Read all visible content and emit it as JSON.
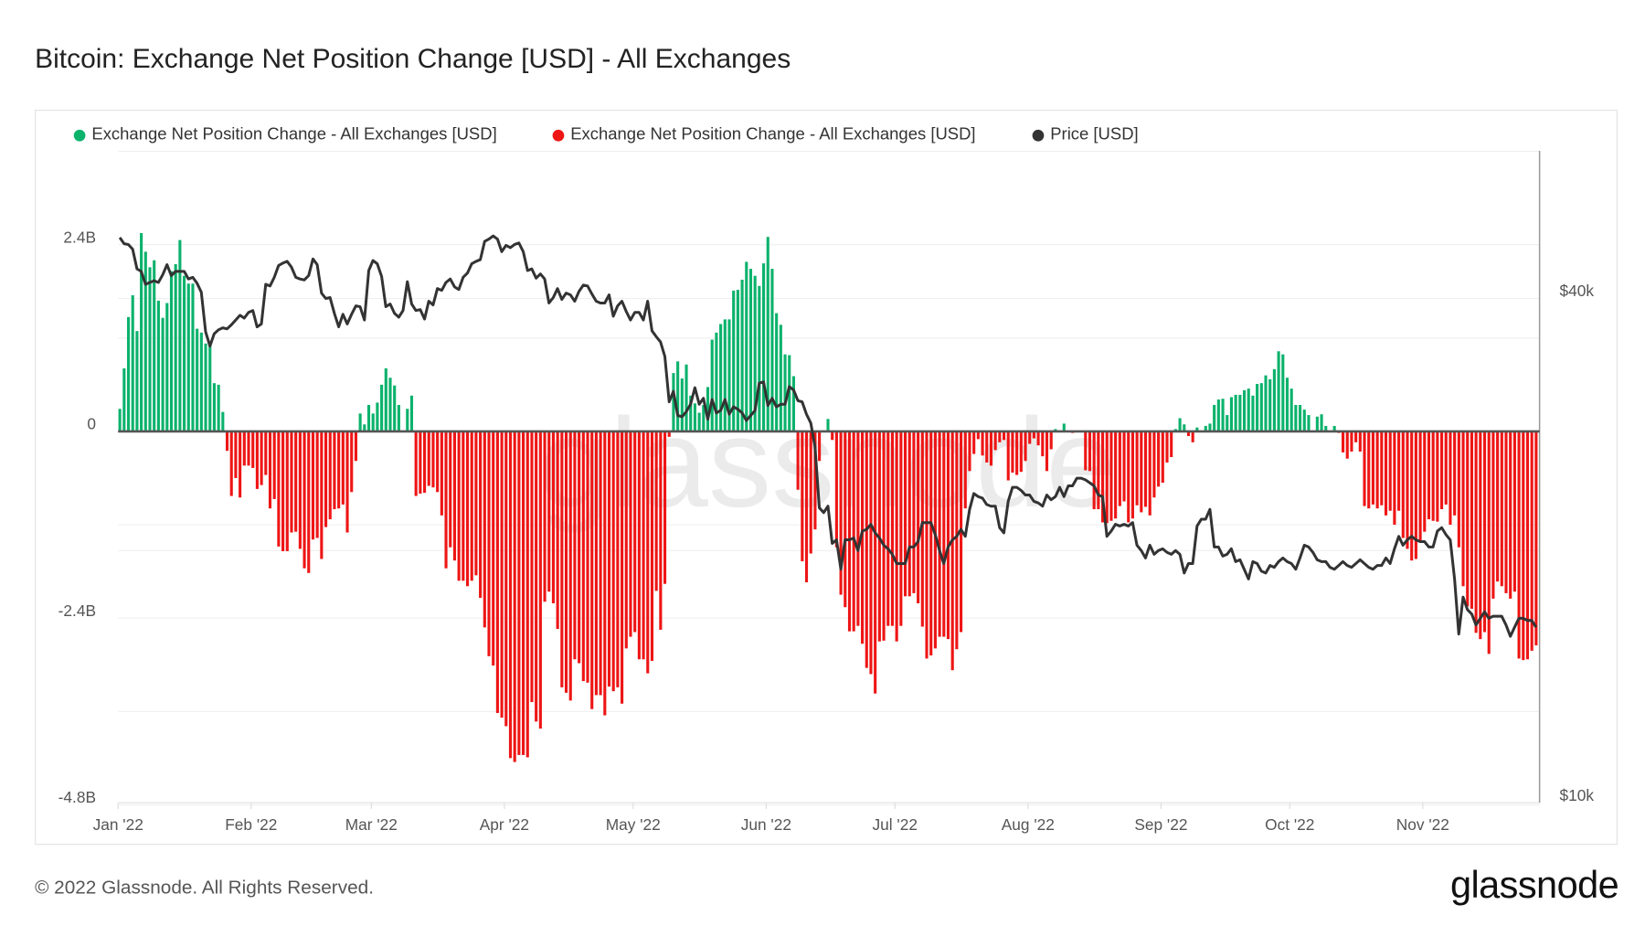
{
  "title": "Bitcoin: Exchange Net Position Change [USD] - All Exchanges",
  "footer": {
    "copyright": "© 2022 Glassnode. All Rights Reserved.",
    "logo": "glassnode",
    "watermark": "glassnode"
  },
  "colors": {
    "positive": "#0bb26c",
    "negative": "#ee1515",
    "price": "#333333",
    "zero_line": "#555555",
    "grid": "#efefef"
  },
  "legend": [
    {
      "label": "Exchange Net Position Change - All Exchanges [USD]",
      "color": "#0bb26c"
    },
    {
      "label": "Exchange Net Position Change - All Exchanges [USD]",
      "color": "#ee1515"
    },
    {
      "label": "Price [USD]",
      "color": "#333333"
    }
  ],
  "chart_data": {
    "type": "bar+line",
    "legend_position": "top-left",
    "grid": true,
    "left_axis": {
      "unit": "USD",
      "range": [
        -4.8,
        3.6
      ],
      "ticks": [
        {
          "value": 2.4,
          "label": "2.4B"
        },
        {
          "value": 0,
          "label": "0"
        },
        {
          "value": -2.4,
          "label": "-2.4B"
        },
        {
          "value": -4.8,
          "label": "-4.8B"
        }
      ],
      "gridlines": [
        3.6,
        2.4,
        1.2,
        0,
        -1.2,
        -2.4,
        -3.6,
        -4.8
      ]
    },
    "right_axis": {
      "unit": "USD",
      "scale": "log",
      "range": [
        10000,
        50000
      ],
      "ticks": [
        {
          "value": 40000,
          "label": "$40k"
        },
        {
          "value": 10000,
          "label": "$10k"
        }
      ],
      "gridlines": [
        40000,
        20000
      ]
    },
    "x_axis": {
      "ticks": [
        "Jan '22",
        "Feb '22",
        "Mar '22",
        "Apr '22",
        "May '22",
        "Jun '22",
        "Jul '22",
        "Aug '22",
        "Sep '22",
        "Oct '22",
        "Nov '22"
      ]
    },
    "net_position_unit": "billion USD (daily)",
    "price_unit": "thousand USD (daily)",
    "months": [
      {
        "label": "Jan '22",
        "net": [
          0.29,
          0.81,
          1.47,
          1.75,
          1.29,
          2.55,
          2.31,
          2.11,
          2.2,
          1.68,
          1.46,
          1.65,
          2.06,
          2.15,
          2.46,
          2.0,
          1.9,
          1.9,
          1.32,
          1.27,
          1.13,
          1.13,
          0.62,
          0.6,
          0.25,
          -0.25,
          -0.83,
          -0.6,
          -0.85,
          -0.44,
          -0.44
        ],
        "price": [
          47.3,
          46.5,
          46.4,
          45.8,
          43.4,
          43.1,
          41.6,
          41.8,
          42.0,
          41.8,
          42.7,
          43.9,
          42.6,
          43.1,
          43.1,
          43.1,
          42.2,
          42.4,
          41.7,
          40.7,
          36.5,
          35.1,
          36.3,
          36.7,
          36.9,
          36.8,
          37.2,
          37.7,
          38.2,
          37.9,
          38.5
        ]
      },
      {
        "label": "Feb '22",
        "net": [
          -0.47,
          -0.74,
          -0.69,
          -0.56,
          -0.99,
          -0.87,
          -1.48,
          -1.54,
          -1.54,
          -1.3,
          -1.29,
          -1.51,
          -1.76,
          -1.82,
          -1.39,
          -1.37,
          -1.64,
          -1.23,
          -1.13,
          -1.0,
          -0.99,
          -0.94,
          -1.3,
          -0.78,
          -0.38,
          0.23,
          0.09,
          0.34
        ],
        "price": [
          38.7,
          37.0,
          37.3,
          41.6,
          41.4,
          42.4,
          43.8,
          44.1,
          44.3,
          43.6,
          42.4,
          42.2,
          42.1,
          42.6,
          44.6,
          43.9,
          40.6,
          40.0,
          40.1,
          38.4,
          37.0,
          38.3,
          37.3,
          38.3,
          39.2,
          39.1,
          37.7,
          43.2
        ]
      },
      {
        "label": "Mar '22",
        "net": [
          0.23,
          0.37,
          0.6,
          0.81,
          0.69,
          0.59,
          0.34,
          0,
          0.29,
          0.46,
          -0.83,
          -0.8,
          -0.79,
          -0.7,
          -0.72,
          -0.78,
          -1.08,
          -1.76,
          -1.49,
          -1.66,
          -1.92,
          -1.92,
          -1.99,
          -1.92,
          -1.85,
          -2.14,
          -2.52,
          -2.89,
          -3.01,
          -3.62,
          -3.68
        ],
        "price": [
          44.4,
          44.0,
          42.5,
          39.1,
          39.4,
          38.4,
          38.0,
          38.7,
          41.9,
          39.4,
          38.7,
          38.8,
          37.8,
          39.7,
          39.3,
          41.1,
          40.9,
          41.8,
          42.2,
          41.3,
          41.0,
          42.4,
          42.9,
          44.0,
          44.3,
          44.5,
          46.8,
          47.1,
          47.5,
          47.1,
          45.5
        ]
      },
      {
        "label": "Apr '22",
        "net": [
          -3.79,
          -4.2,
          -4.25,
          -4.16,
          -4.16,
          -4.19,
          -3.48,
          -3.73,
          -3.82,
          -2.19,
          -2.06,
          -2.21,
          -2.54,
          -3.29,
          -3.36,
          -3.46,
          -2.93,
          -2.98,
          -3.21,
          -3.23,
          -3.57,
          -3.39,
          -3.39,
          -3.65,
          -3.28,
          -3.34,
          -3.29,
          -3.5,
          -2.79,
          -2.64
        ],
        "price": [
          46.3,
          46.0,
          46.4,
          46.6,
          45.5,
          43.2,
          43.4,
          42.3,
          42.8,
          42.2,
          39.5,
          40.1,
          41.1,
          39.9,
          40.6,
          40.4,
          39.7,
          40.8,
          41.5,
          41.4,
          40.5,
          39.7,
          39.5,
          39.5,
          40.4,
          38.1,
          39.2,
          39.7,
          38.6,
          37.7
        ]
      },
      {
        "label": "May '22",
        "net": [
          -2.58,
          -2.93,
          -2.93,
          -3.11,
          -2.95,
          -2.05,
          -2.55,
          -1.96,
          -0.07,
          0.75,
          0.9,
          0.68,
          0.86,
          0.46,
          0.36,
          0.24,
          0.34,
          0.57,
          1.18,
          1.27,
          1.38,
          1.44,
          1.44,
          1.81,
          1.82,
          1.95,
          2.18,
          2.09,
          2.0,
          1.87,
          2.16
        ],
        "price": [
          38.5,
          38.5,
          37.7,
          39.7,
          36.6,
          36.0,
          35.5,
          34.1,
          30.1,
          31.0,
          29.0,
          28.9,
          29.3,
          29.9,
          31.3,
          29.9,
          30.4,
          28.7,
          30.3,
          29.2,
          29.4,
          30.3,
          29.1,
          29.7,
          29.5,
          29.2,
          28.6,
          29.0,
          29.4,
          31.7,
          31.8
        ]
      },
      {
        "label": "Jun '22",
        "net": [
          2.5,
          2.09,
          1.52,
          1.37,
          0.99,
          0.98,
          0.71,
          -0.75,
          -1.67,
          -1.94,
          -1.57,
          -1.26,
          -0.38,
          0,
          0.16,
          -0.11,
          -1.49,
          -2.1,
          -2.26,
          -2.57,
          -2.57,
          -2.5,
          -2.73,
          -3.04,
          -3.12,
          -3.37,
          -2.7,
          -2.69,
          -2.5,
          -2.5
        ],
        "price": [
          29.8,
          30.4,
          29.7,
          29.9,
          29.9,
          31.4,
          31.1,
          30.2,
          30.1,
          29.1,
          28.4,
          26.6,
          22.5,
          22.2,
          22.6,
          20.4,
          20.6,
          19.0,
          20.6,
          20.6,
          20.7,
          20.0,
          21.1,
          21.2,
          21.5,
          21.0,
          20.7,
          20.3,
          20.1,
          19.8
        ]
      },
      {
        "label": "Jul '22",
        "net": [
          -2.7,
          -2.5,
          -2.12,
          -2.12,
          -2.08,
          -2.21,
          -2.51,
          -2.92,
          -2.88,
          -2.79,
          -2.64,
          -2.64,
          -2.67,
          -3.07,
          -2.8,
          -2.58,
          -0.99,
          -0.51,
          -0.29,
          -0.1,
          -0.31,
          -0.4,
          -0.44,
          -0.24,
          -0.14,
          -0.11,
          -0.63,
          -0.53,
          -0.56,
          -0.52,
          -0.38
        ],
        "price": [
          19.3,
          19.3,
          19.3,
          20.2,
          20.2,
          20.5,
          21.6,
          21.6,
          21.6,
          20.9,
          20.0,
          19.3,
          20.2,
          20.6,
          20.8,
          21.2,
          20.8,
          22.4,
          23.4,
          23.2,
          23.1,
          22.7,
          22.6,
          22.6,
          21.3,
          21.0,
          22.9,
          23.8,
          23.8,
          23.6,
          23.3
        ]
      },
      {
        "label": "Aug '22",
        "net": [
          -0.16,
          -0.09,
          -0.18,
          -0.32,
          -0.51,
          -0.23,
          0.03,
          0,
          0.1,
          0,
          -0.02,
          0,
          0,
          -0.5,
          -0.51,
          -1.0,
          -1.0,
          -1.17,
          -1.18,
          -1.15,
          -1.12,
          -0.96,
          -0.9,
          -1.17,
          -1.12,
          -0.95,
          -1.04,
          -0.97,
          -1.08,
          -0.85,
          -0.71
        ],
        "price": [
          23.3,
          22.9,
          22.8,
          22.6,
          23.3,
          23.0,
          23.2,
          23.8,
          23.2,
          23.9,
          23.9,
          24.4,
          24.4,
          24.3,
          24.1,
          23.9,
          23.3,
          23.2,
          20.8,
          21.1,
          21.5,
          21.4,
          21.5,
          21.4,
          21.6,
          20.3,
          20.0,
          19.6,
          20.3,
          19.8,
          20.0
        ]
      },
      {
        "label": "Sep '22",
        "net": [
          -0.66,
          -0.4,
          -0.33,
          0.03,
          0.17,
          0.09,
          -0.06,
          -0.14,
          0.05,
          0.01,
          0.07,
          0.1,
          0.34,
          0.41,
          0.42,
          0.21,
          0.44,
          0.47,
          0.47,
          0.53,
          0.55,
          0.46,
          0.61,
          0.62,
          0.72,
          0.67,
          0.8,
          1.03,
          0.99,
          0.69
        ],
        "price": [
          20.1,
          19.9,
          19.8,
          20.0,
          19.8,
          18.8,
          19.3,
          19.3,
          21.4,
          21.8,
          21.8,
          22.4,
          20.2,
          20.2,
          19.7,
          19.8,
          20.1,
          19.4,
          19.5,
          19.0,
          18.5,
          19.4,
          19.3,
          18.9,
          18.8,
          19.2,
          19.1,
          19.4,
          19.6,
          19.4
        ]
      },
      {
        "label": "Oct '22",
        "net": [
          0.55,
          0.34,
          0.34,
          0.28,
          0.21,
          0,
          0.19,
          0.22,
          0.07,
          0,
          0.07,
          -0.02,
          -0.27,
          -0.35,
          -0.26,
          -0.14,
          -0.26,
          -0.96,
          -0.99,
          -0.94,
          -0.99,
          -0.95,
          -1.08,
          -1.02,
          -1.2,
          -1.02,
          -1.37,
          -1.51,
          -1.66,
          -1.64,
          -1.41
        ],
        "price": [
          19.3,
          19.0,
          19.6,
          20.3,
          20.2,
          19.9,
          19.5,
          19.4,
          19.4,
          19.1,
          19.0,
          19.2,
          19.4,
          19.2,
          19.1,
          19.3,
          19.5,
          19.3,
          19.1,
          19.0,
          19.2,
          19.2,
          19.6,
          19.3,
          20.1,
          20.8,
          20.3,
          20.6,
          20.8,
          20.6,
          20.5
        ]
      },
      {
        "label": "Nov '22",
        "net": [
          -1.29,
          -1.13,
          -1.15,
          -1.16,
          -1.0,
          -0.94,
          -1.2,
          -1.08,
          -1.49,
          -1.99,
          -2.25,
          -2.28,
          -2.59,
          -2.67,
          -2.58,
          -2.86,
          -2.15,
          -1.93,
          -1.99,
          -2.08,
          -2.15,
          -2.06,
          -2.92,
          -2.94,
          -2.93,
          -2.82,
          -2.75
        ],
        "price": [
          20.5,
          20.2,
          20.2,
          21.1,
          21.3,
          20.9,
          20.6,
          18.5,
          15.9,
          17.6,
          17.0,
          16.8,
          16.3,
          16.6,
          16.9,
          16.6,
          16.7,
          16.7,
          16.7,
          16.3,
          15.8,
          16.2,
          16.6,
          16.6,
          16.5,
          16.5,
          16.2
        ]
      }
    ]
  }
}
